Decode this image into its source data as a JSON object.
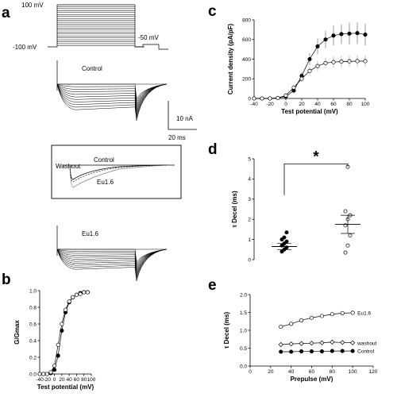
{
  "panel_labels": {
    "a": "a",
    "b": "b",
    "c": "c",
    "d": "d",
    "e": "e"
  },
  "panel_a": {
    "voltage_top": "100 mV",
    "voltage_bottom": "-100 mV",
    "voltage_tail": "-50 mV",
    "control_label": "Control",
    "drug_label": "Eu1.6",
    "scale_current": "10 nA",
    "scale_time": "20 ms",
    "inset": {
      "washout": "Washout",
      "control": "Control",
      "drug": "Eu1.6"
    }
  },
  "chart_data": [
    {
      "id": "b",
      "type": "line",
      "xlabel": "Test potential (mV)",
      "ylabel": "G/Gmax",
      "xlim": [
        -40,
        100
      ],
      "ylim": [
        0,
        1.0
      ],
      "xticks": [
        -40,
        -20,
        0,
        20,
        40,
        60,
        80,
        100
      ],
      "yticks": [
        0.0,
        0.2,
        0.4,
        0.6,
        0.8,
        1.0
      ],
      "x": [
        -40,
        -30,
        -20,
        -10,
        0,
        10,
        20,
        30,
        40,
        50,
        60,
        70,
        80,
        90
      ],
      "series": [
        {
          "marker": "filled",
          "values": [
            0,
            0,
            0,
            0.01,
            0.05,
            0.22,
            0.52,
            0.74,
            0.86,
            0.92,
            0.95,
            0.97,
            0.98,
            0.98
          ]
        },
        {
          "marker": "open",
          "values": [
            0,
            0,
            0,
            0.02,
            0.1,
            0.35,
            0.6,
            0.77,
            0.87,
            0.92,
            0.95,
            0.96,
            0.98,
            0.98
          ]
        }
      ]
    },
    {
      "id": "c",
      "type": "line",
      "xlabel": "Test potential (mV)",
      "ylabel": "Current density (pA/pF)",
      "xlim": [
        -40,
        100
      ],
      "ylim": [
        0,
        800
      ],
      "xticks": [
        -40,
        -20,
        0,
        20,
        40,
        60,
        80,
        100
      ],
      "yticks": [
        0,
        200,
        400,
        600,
        800
      ],
      "x": [
        -40,
        -30,
        -20,
        -10,
        0,
        10,
        20,
        30,
        40,
        50,
        60,
        70,
        80,
        90,
        100
      ],
      "series": [
        {
          "marker": "filled",
          "values": [
            0,
            0,
            0,
            5,
            20,
            80,
            230,
            400,
            530,
            600,
            640,
            655,
            660,
            665,
            650
          ],
          "errors": [
            0,
            0,
            0,
            5,
            10,
            25,
            40,
            60,
            80,
            90,
            100,
            100,
            110,
            110,
            110
          ]
        },
        {
          "marker": "open",
          "values": [
            0,
            0,
            0,
            5,
            30,
            110,
            200,
            280,
            330,
            360,
            370,
            375,
            378,
            380,
            380
          ],
          "errors": [
            0,
            0,
            0,
            5,
            10,
            20,
            30,
            40,
            50,
            55,
            60,
            60,
            60,
            60,
            60
          ]
        }
      ]
    },
    {
      "id": "d",
      "type": "scatter",
      "ylabel": "τ Decel (ms)",
      "ylim": [
        0,
        5
      ],
      "yticks": [
        0,
        1,
        2,
        3,
        4,
        5
      ],
      "significance": "*",
      "groups": [
        {
          "points": [
            0.4,
            0.5,
            0.6,
            0.7,
            0.8,
            0.9,
            1.0,
            1.1,
            1.35
          ],
          "mean": 0.65,
          "sem_low": 0.5,
          "sem_high": 0.8
        },
        {
          "points": [
            0.35,
            0.7,
            1.2,
            1.7,
            2.0,
            2.2,
            2.4,
            4.6
          ],
          "mean": 1.75,
          "sem_low": 1.3,
          "sem_high": 2.2
        }
      ]
    },
    {
      "id": "e",
      "type": "line",
      "xlabel": "Prepulse (mV)",
      "ylabel": "τ Decel (ms)",
      "xlim": [
        0,
        120
      ],
      "ylim": [
        0,
        2.0
      ],
      "xticks": [
        0,
        20,
        40,
        60,
        80,
        100,
        120
      ],
      "yticks": [
        0.0,
        0.5,
        1.0,
        1.5,
        2.0
      ],
      "x": [
        30,
        40,
        50,
        60,
        70,
        80,
        90,
        100
      ],
      "series": [
        {
          "name": "Eu1.6",
          "marker": "open",
          "values": [
            1.1,
            1.18,
            1.28,
            1.35,
            1.4,
            1.45,
            1.48,
            1.49
          ]
        },
        {
          "name": "washout",
          "marker": "diamond",
          "values": [
            0.6,
            0.62,
            0.63,
            0.64,
            0.65,
            0.67,
            0.66,
            0.65
          ]
        },
        {
          "name": "Control",
          "marker": "filled",
          "values": [
            0.4,
            0.4,
            0.41,
            0.41,
            0.41,
            0.42,
            0.42,
            0.42
          ]
        }
      ]
    }
  ]
}
